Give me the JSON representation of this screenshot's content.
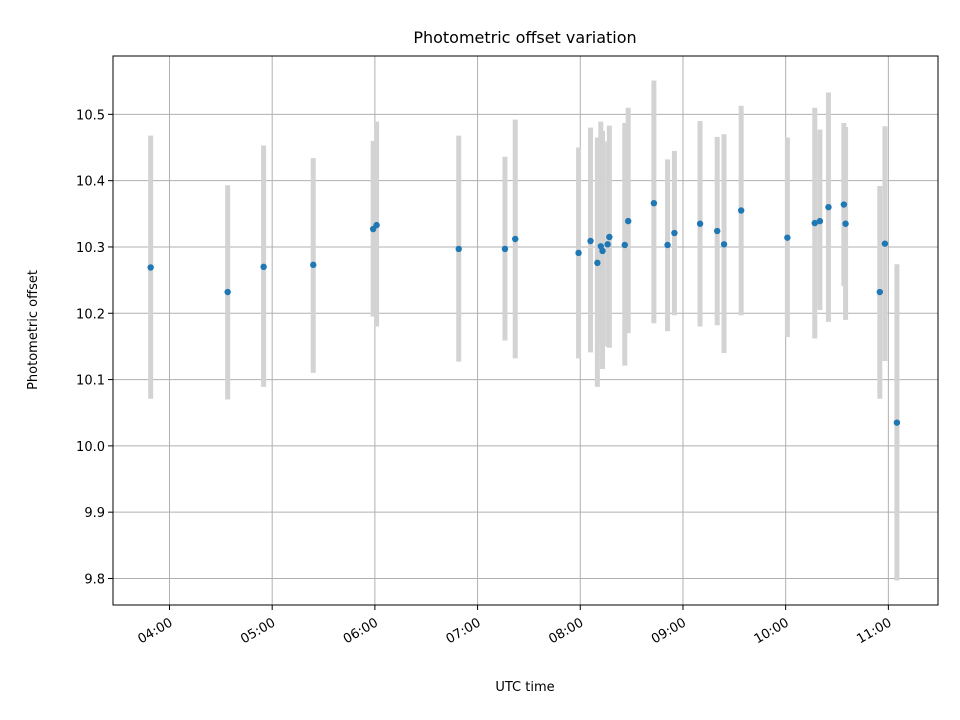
{
  "chart_data": {
    "type": "scatter",
    "title": "Photometric offset variation",
    "xlabel": "UTC time",
    "ylabel": "Photometric offset",
    "xlim": [
      "03:27",
      "11:29"
    ],
    "ylim": [
      9.76,
      10.588
    ],
    "grid": true,
    "x_ticks": [
      "04:00",
      "05:00",
      "06:00",
      "07:00",
      "08:00",
      "09:00",
      "10:00",
      "11:00"
    ],
    "y_ticks": [
      "9.8",
      "9.9",
      "10.0",
      "10.1",
      "10.2",
      "10.3",
      "10.4",
      "10.5"
    ],
    "marker_color": "#1f77b4",
    "errorbar_color": "#d3d3d3",
    "points": [
      {
        "t": "03:49",
        "y": 10.269,
        "ylow": 10.071,
        "yhigh": 10.468
      },
      {
        "t": "04:34",
        "y": 10.232,
        "ylow": 10.07,
        "yhigh": 10.393
      },
      {
        "t": "04:55",
        "y": 10.27,
        "ylow": 10.089,
        "yhigh": 10.453
      },
      {
        "t": "05:24",
        "y": 10.273,
        "ylow": 10.11,
        "yhigh": 10.434
      },
      {
        "t": "05:59",
        "y": 10.327,
        "ylow": 10.195,
        "yhigh": 10.46
      },
      {
        "t": "06:01",
        "y": 10.333,
        "ylow": 10.18,
        "yhigh": 10.489
      },
      {
        "t": "06:49",
        "y": 10.297,
        "ylow": 10.127,
        "yhigh": 10.468
      },
      {
        "t": "07:16",
        "y": 10.297,
        "ylow": 10.159,
        "yhigh": 10.436
      },
      {
        "t": "07:22",
        "y": 10.312,
        "ylow": 10.132,
        "yhigh": 10.492
      },
      {
        "t": "07:59",
        "y": 10.291,
        "ylow": 10.132,
        "yhigh": 10.45
      },
      {
        "t": "08:06",
        "y": 10.309,
        "ylow": 10.141,
        "yhigh": 10.48
      },
      {
        "t": "08:10",
        "y": 10.276,
        "ylow": 10.089,
        "yhigh": 10.465
      },
      {
        "t": "08:12",
        "y": 10.301,
        "ylow": 10.157,
        "yhigh": 10.489
      },
      {
        "t": "08:13",
        "y": 10.294,
        "ylow": 10.116,
        "yhigh": 10.475
      },
      {
        "t": "08:16",
        "y": 10.304,
        "ylow": 10.15,
        "yhigh": 10.459
      },
      {
        "t": "08:17",
        "y": 10.315,
        "ylow": 10.148,
        "yhigh": 10.483
      },
      {
        "t": "08:26",
        "y": 10.303,
        "ylow": 10.121,
        "yhigh": 10.487
      },
      {
        "t": "08:28",
        "y": 10.339,
        "ylow": 10.17,
        "yhigh": 10.51
      },
      {
        "t": "08:43",
        "y": 10.366,
        "ylow": 10.185,
        "yhigh": 10.551
      },
      {
        "t": "08:51",
        "y": 10.303,
        "ylow": 10.173,
        "yhigh": 10.432
      },
      {
        "t": "08:55",
        "y": 10.321,
        "ylow": 10.197,
        "yhigh": 10.445
      },
      {
        "t": "09:10",
        "y": 10.335,
        "ylow": 10.18,
        "yhigh": 10.49
      },
      {
        "t": "09:20",
        "y": 10.324,
        "ylow": 10.182,
        "yhigh": 10.466
      },
      {
        "t": "09:24",
        "y": 10.304,
        "ylow": 10.14,
        "yhigh": 10.47
      },
      {
        "t": "09:34",
        "y": 10.355,
        "ylow": 10.197,
        "yhigh": 10.513
      },
      {
        "t": "10:01",
        "y": 10.314,
        "ylow": 10.164,
        "yhigh": 10.465
      },
      {
        "t": "10:17",
        "y": 10.336,
        "ylow": 10.162,
        "yhigh": 10.51
      },
      {
        "t": "10:20",
        "y": 10.339,
        "ylow": 10.205,
        "yhigh": 10.477
      },
      {
        "t": "10:25",
        "y": 10.36,
        "ylow": 10.187,
        "yhigh": 10.533
      },
      {
        "t": "10:34",
        "y": 10.364,
        "ylow": 10.241,
        "yhigh": 10.487
      },
      {
        "t": "10:35",
        "y": 10.335,
        "ylow": 10.19,
        "yhigh": 10.481
      },
      {
        "t": "10:55",
        "y": 10.232,
        "ylow": 10.071,
        "yhigh": 10.392
      },
      {
        "t": "10:58",
        "y": 10.305,
        "ylow": 10.128,
        "yhigh": 10.482
      },
      {
        "t": "11:05",
        "y": 10.035,
        "ylow": 9.797,
        "yhigh": 10.274
      }
    ]
  }
}
